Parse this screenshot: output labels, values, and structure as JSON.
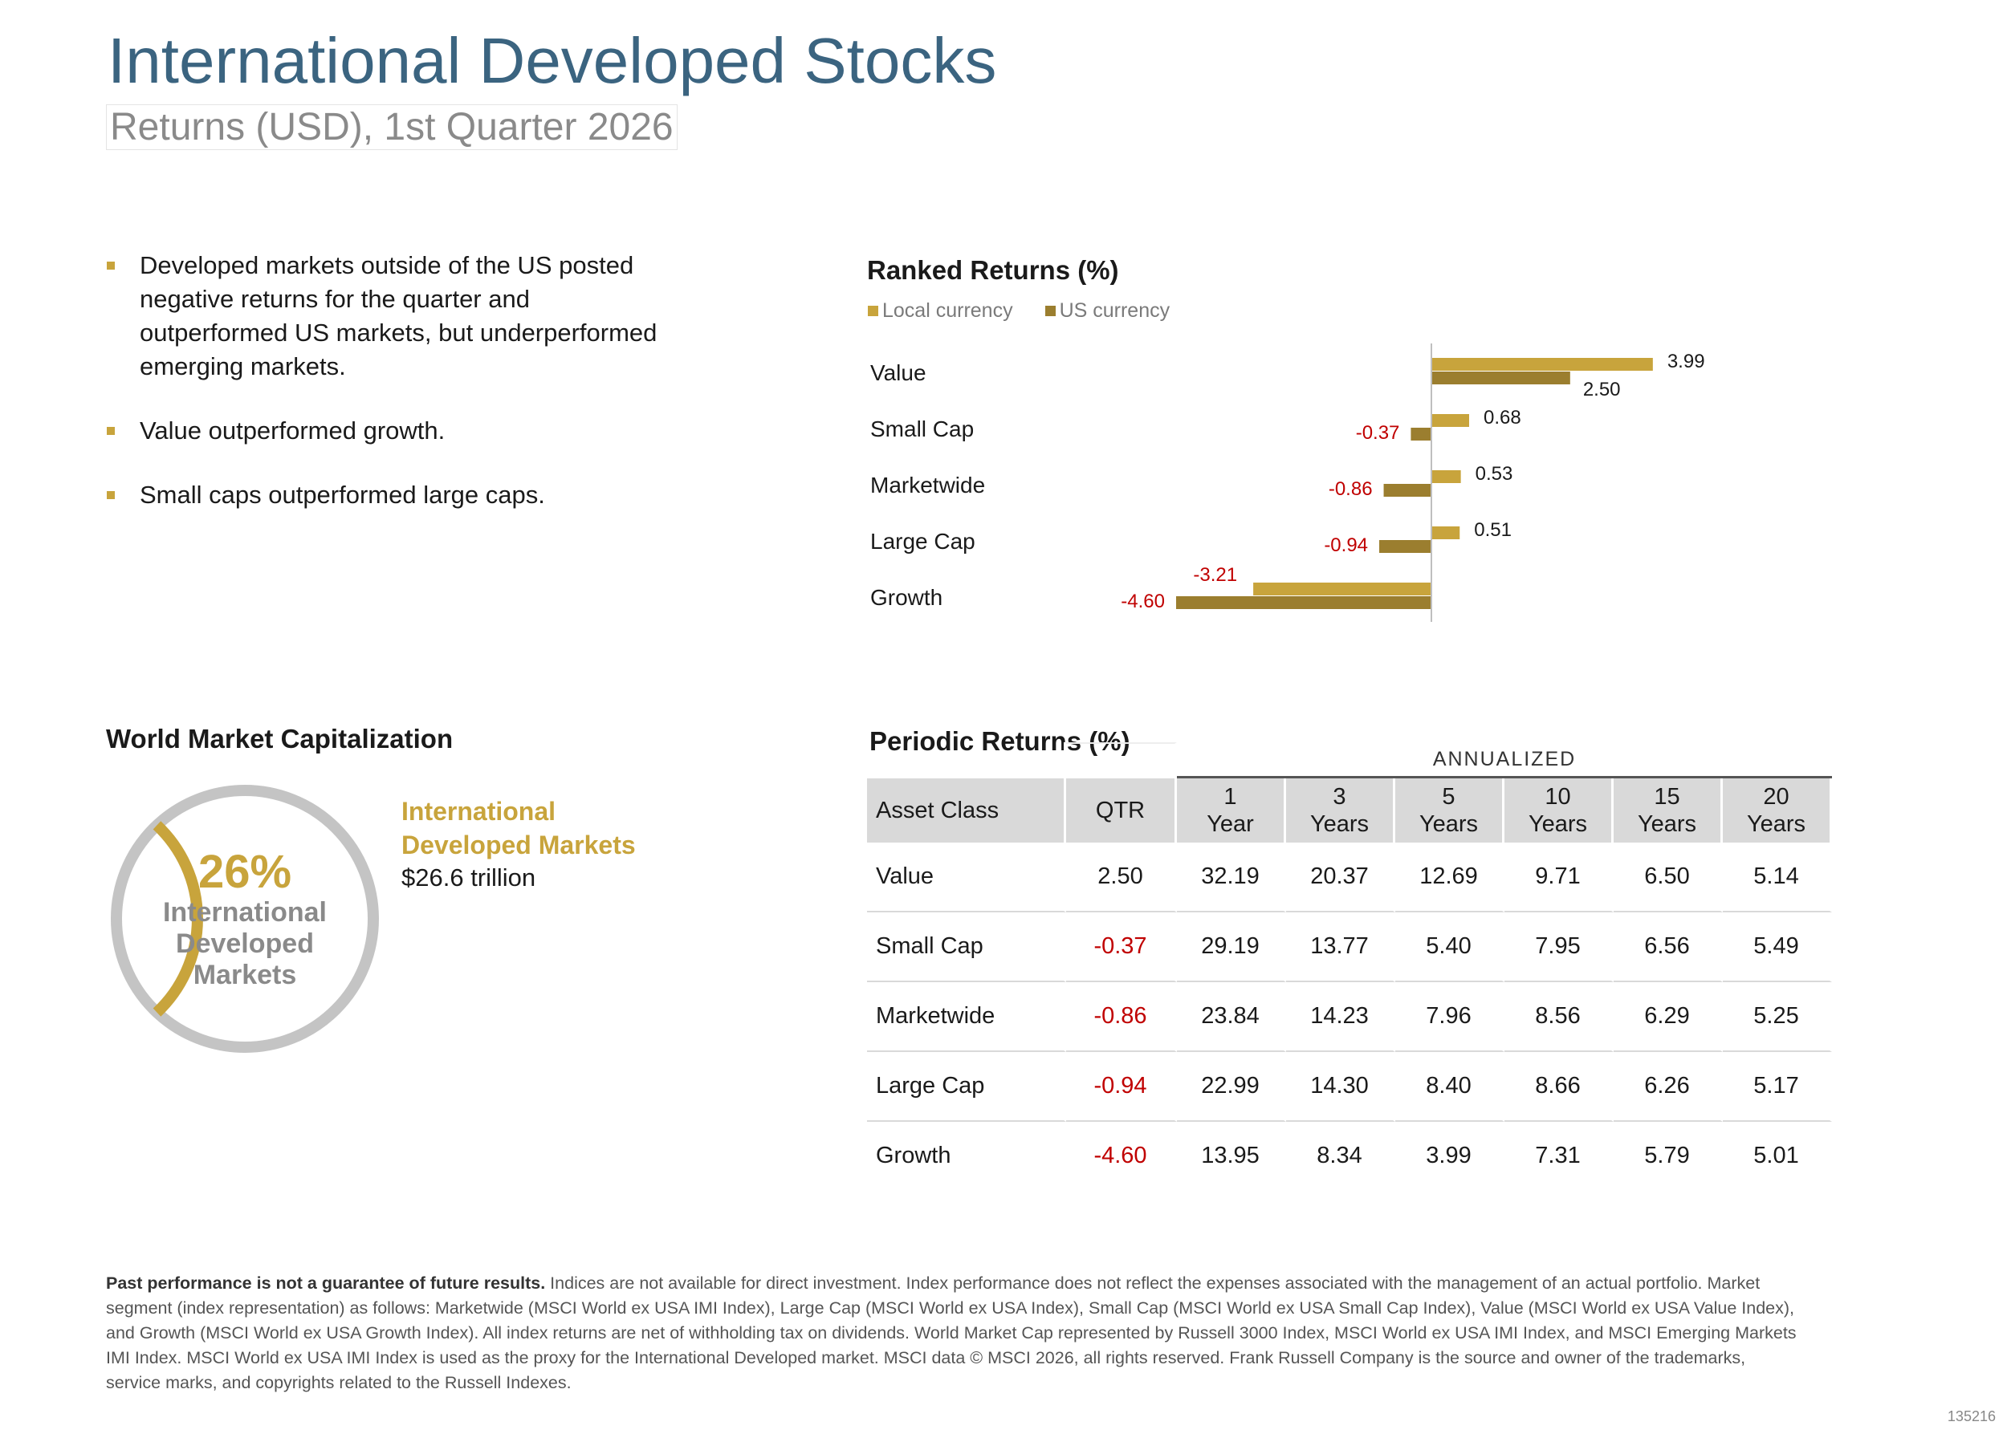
{
  "header": {
    "title": "International Developed Stocks",
    "subtitle": "Returns (USD), 1st Quarter 2026"
  },
  "bullets": [
    "Developed markets outside of the US posted negative returns for the quarter and outperformed US markets, but underperformed emerging markets.",
    "Value outperformed growth.",
    "Small caps outperformed large caps."
  ],
  "colors": {
    "local_currency": "#c8a43c",
    "us_currency": "#9b7e2f",
    "negative_text": "#c00000",
    "donut_track": "#c4c4c4",
    "title": "#3b6480"
  },
  "chart_data": {
    "type": "bar",
    "orientation": "horizontal",
    "title": "Ranked Returns (%)",
    "categories": [
      "Value",
      "Small Cap",
      "Marketwide",
      "Large Cap",
      "Growth"
    ],
    "series": [
      {
        "name": "Local currency",
        "values": [
          3.99,
          0.68,
          0.53,
          0.51,
          -3.21
        ]
      },
      {
        "name": "US currency",
        "values": [
          2.5,
          -0.37,
          -0.86,
          -0.94,
          -4.6
        ]
      }
    ],
    "labels": [
      [
        "3.99",
        "0.68",
        "0.53",
        "0.51",
        "-3.21"
      ],
      [
        "2.50",
        "-0.37",
        "-0.86",
        "-0.94",
        "-4.60"
      ]
    ],
    "xlim": [
      -4.6,
      3.99
    ],
    "legend_position": "top-left",
    "grid": false
  },
  "market_cap": {
    "title": "World Market Capitalization",
    "percent": "26%",
    "percent_value": 26,
    "center_label_lines": [
      "International",
      "Developed",
      "Markets"
    ],
    "label_lines": [
      "International",
      "Developed Markets"
    ],
    "value": "$26.6 trillion"
  },
  "periodic": {
    "title": "Periodic Returns (%)",
    "annualized_label": "ANNUALIZED",
    "asset_header": "Asset Class",
    "qtr_header": "QTR",
    "period_headers": [
      [
        "1",
        "Year"
      ],
      [
        "3",
        "Years"
      ],
      [
        "5",
        "Years"
      ],
      [
        "10",
        "Years"
      ],
      [
        "15",
        "Years"
      ],
      [
        "20",
        "Years"
      ]
    ],
    "rows": [
      {
        "asset": "Value",
        "qtr": "2.50",
        "values": [
          "32.19",
          "20.37",
          "12.69",
          "9.71",
          "6.50",
          "5.14"
        ]
      },
      {
        "asset": "Small Cap",
        "qtr": "-0.37",
        "values": [
          "29.19",
          "13.77",
          "5.40",
          "7.95",
          "6.56",
          "5.49"
        ]
      },
      {
        "asset": "Marketwide",
        "qtr": "-0.86",
        "values": [
          "23.84",
          "14.23",
          "7.96",
          "8.56",
          "6.29",
          "5.25"
        ]
      },
      {
        "asset": "Large Cap",
        "qtr": "-0.94",
        "values": [
          "22.99",
          "14.30",
          "8.40",
          "8.66",
          "6.26",
          "5.17"
        ]
      },
      {
        "asset": "Growth",
        "qtr": "-4.60",
        "values": [
          "13.95",
          "8.34",
          "3.99",
          "7.31",
          "5.79",
          "5.01"
        ]
      }
    ]
  },
  "footnote": {
    "bold": "Past performance is not a guarantee of future results.",
    "text": " Indices are not available for direct investment. Index performance does not reflect the expenses associated with the management of an actual portfolio. Market segment (index representation) as follows: Marketwide (MSCI World ex USA IMI Index), Large Cap (MSCI World ex USA Index), Small Cap (MSCI World ex USA Small Cap Index), Value (MSCI World ex USA Value Index), and Growth (MSCI World ex USA Growth Index). All index returns are net of withholding tax on dividends. World Market Cap represented by Russell 3000 Index, MSCI World ex USA IMI Index, and MSCI Emerging Markets IMI Index. MSCI World ex USA IMI Index is used as the proxy for the International Developed market. MSCI data © MSCI 2026, all rights reserved. Frank Russell Company is the source and owner of the trademarks, service marks, and copyrights related to the Russell Indexes."
  },
  "doc_code": "135216"
}
